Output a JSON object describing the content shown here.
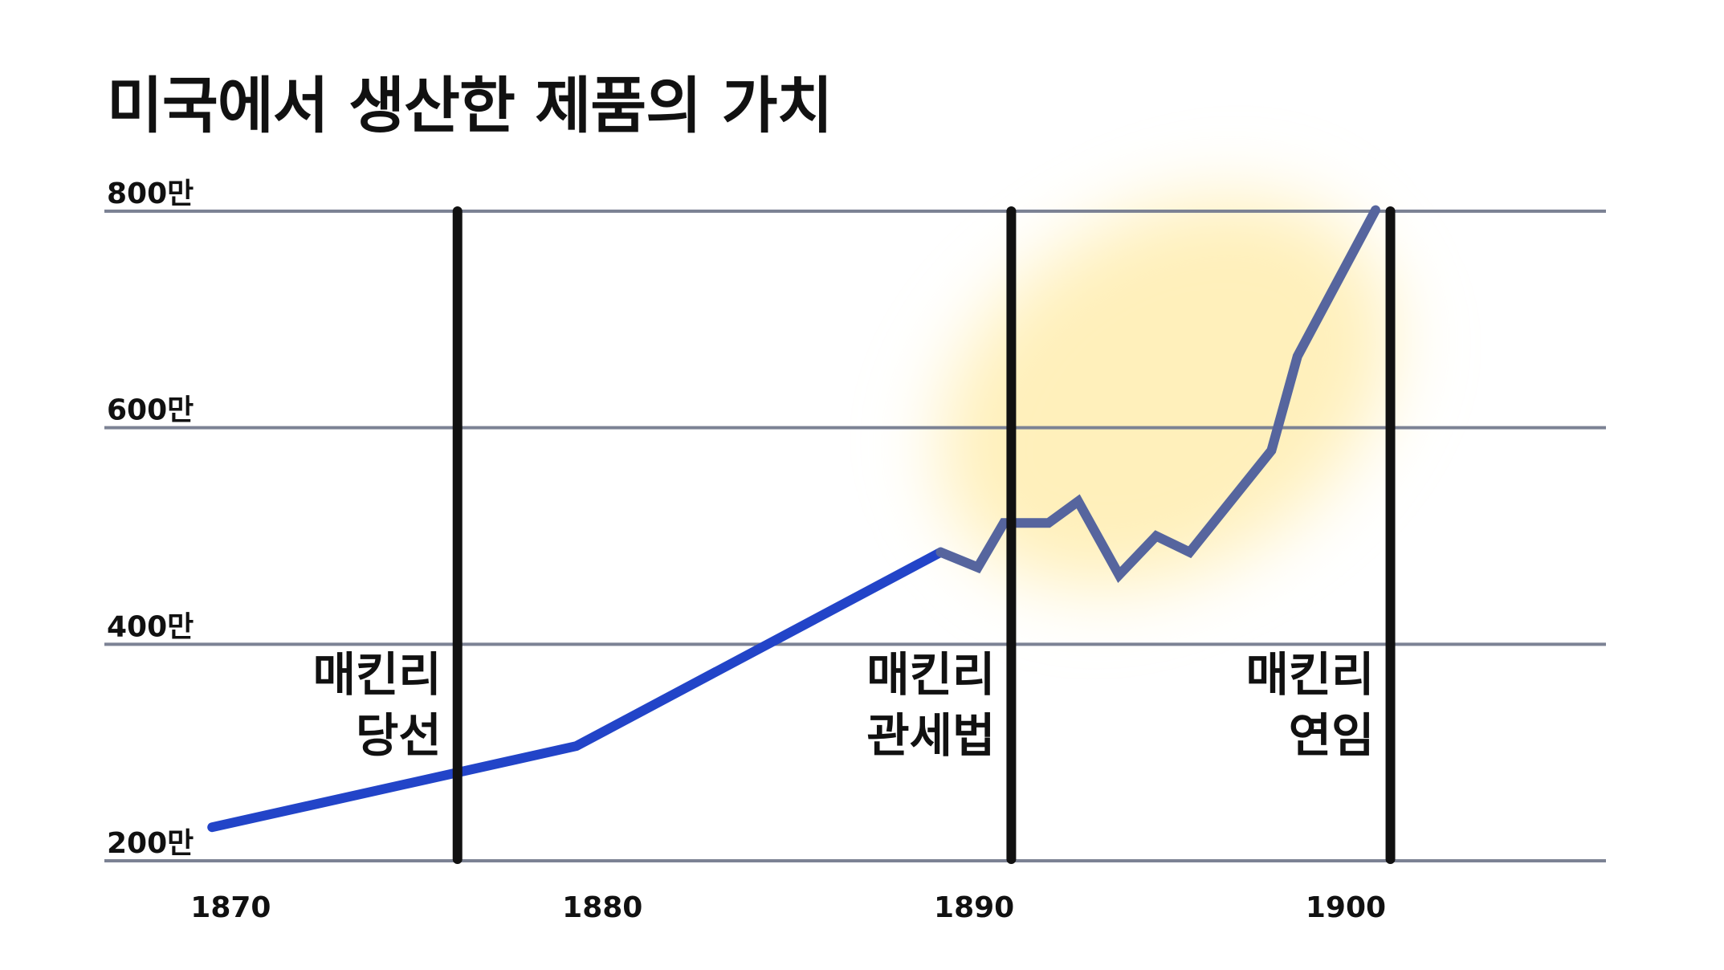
{
  "chart_data": {
    "type": "line",
    "title": "미국에서 생산한 제품의 가치",
    "xlabel": "",
    "ylabel": "",
    "xlim": [
      1866.6,
      1907.0
    ],
    "ylim": [
      200,
      800
    ],
    "x_ticks": [
      1870,
      1880,
      1890,
      1900
    ],
    "y_ticks": [
      {
        "value": 200,
        "label": "200만"
      },
      {
        "value": 400,
        "label": "400만"
      },
      {
        "value": 600,
        "label": "600만"
      },
      {
        "value": 800,
        "label": "800만"
      }
    ],
    "grid": {
      "horizontal": true,
      "vertical": false
    },
    "legend": "none",
    "series": [
      {
        "color": "#2244c8",
        "highlight_color": "#56659e",
        "x": [
          1869.5,
          1879.3,
          1889.1,
          1890.1,
          1890.8,
          1892.0,
          1892.8,
          1893.9,
          1894.9,
          1895.8,
          1898.0,
          1898.7,
          1900.8
        ],
        "y": [
          231,
          306,
          485,
          471,
          512,
          512,
          532,
          464,
          500,
          485,
          579,
          666,
          801
        ]
      }
    ],
    "highlight": {
      "color": "#fff0bb",
      "x_range": [
        1889.5,
        1900.8
      ]
    },
    "annotations": [
      {
        "x": 1876.1,
        "lines": [
          "매킨리",
          "당선"
        ]
      },
      {
        "x": 1891.0,
        "lines": [
          "매킨리",
          "관세법"
        ]
      },
      {
        "x": 1901.2,
        "lines": [
          "매킨리",
          "연임"
        ]
      }
    ],
    "colors": {
      "grid": "#7c8294",
      "marker_line": "#111111",
      "text": "#111111"
    }
  }
}
